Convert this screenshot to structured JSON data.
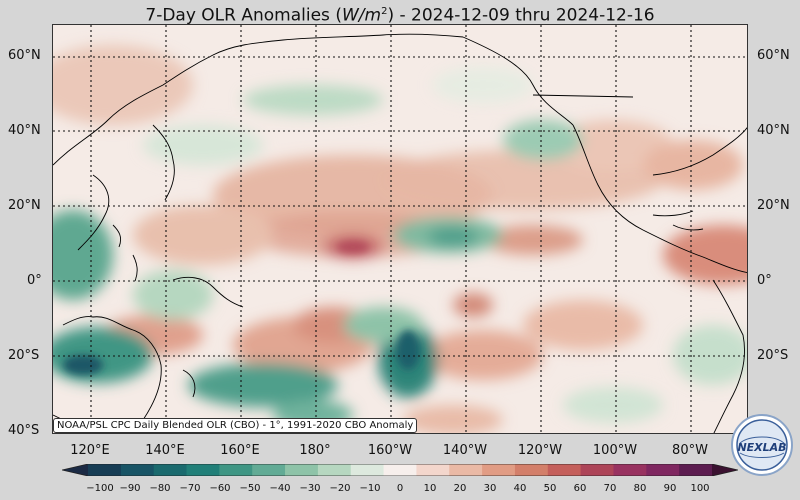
{
  "title": {
    "prefix": "7-Day OLR Anomalies (",
    "unit_base": "W/m",
    "unit_exp": "2",
    "suffix": ") - 2024-12-09 thru 2024-12-16"
  },
  "lat_labels": [
    "60°N",
    "40°N",
    "20°N",
    "0°",
    "20°S",
    "40°S"
  ],
  "lat_labels_right": [
    "60°N",
    "40°N",
    "20°N",
    "0°",
    "20°S"
  ],
  "lon_labels": [
    "120°E",
    "140°E",
    "160°E",
    "180°",
    "160°W",
    "140°W",
    "120°W",
    "100°W",
    "80°W"
  ],
  "credit": "NOAA/PSL CPC Daily Blended OLR (CBO) - 1°, 1991-2020 CBO Anomaly",
  "colorbar": {
    "ticks": [
      "−100",
      "−90",
      "−80",
      "−70",
      "−60",
      "−50",
      "−40",
      "−30",
      "−20",
      "−10",
      "0",
      "10",
      "20",
      "30",
      "40",
      "50",
      "60",
      "70",
      "80",
      "90",
      "100"
    ],
    "colors": [
      "#1b2a44",
      "#173d55",
      "#185466",
      "#1a6a6e",
      "#217f78",
      "#3f9684",
      "#62ab95",
      "#8ec3a8",
      "#b6d7c0",
      "#dde9de",
      "#f7efec",
      "#f3d6cc",
      "#eab9a5",
      "#e19c84",
      "#d37f6a",
      "#c45f5b",
      "#ad4458",
      "#983260",
      "#7f2760",
      "#5c1c50",
      "#3a1130"
    ]
  },
  "logo": {
    "text": "NEXLAB"
  }
}
